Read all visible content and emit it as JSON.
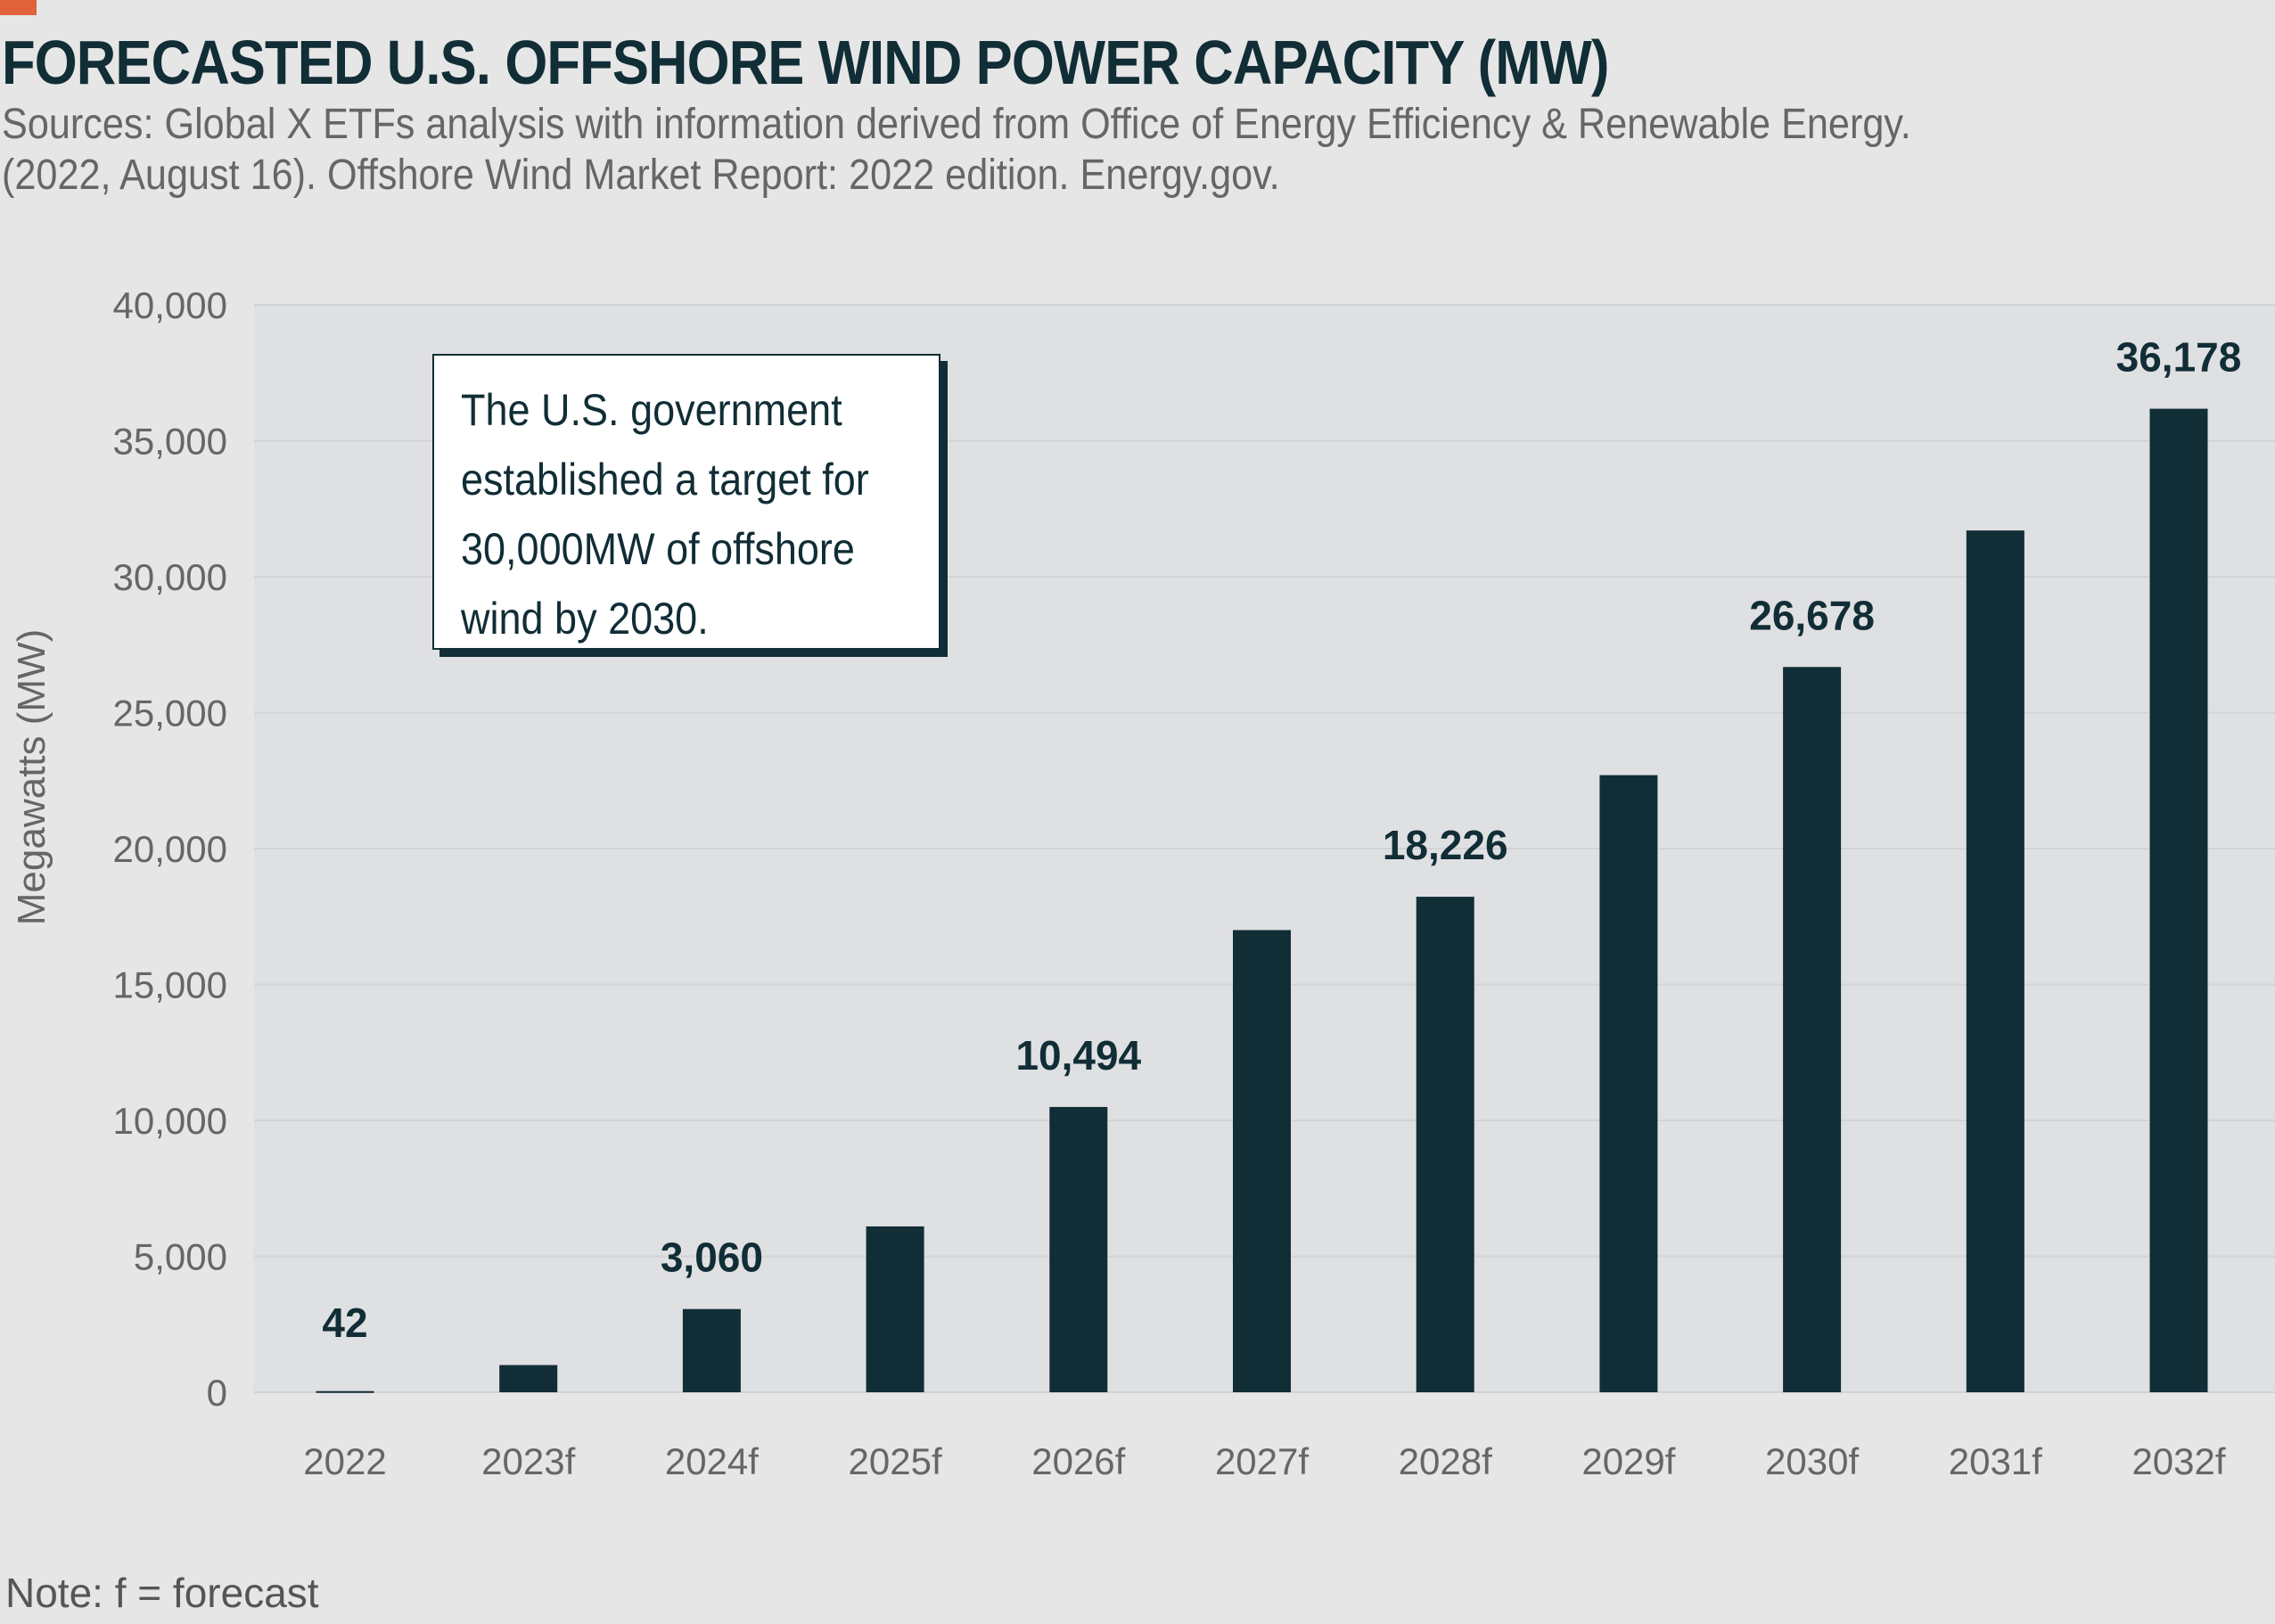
{
  "header": {
    "title": "FORECASTED U.S. OFFSHORE WIND POWER CAPACITY (MW)",
    "subtitle_lines": [
      "Sources: Global X ETFs analysis with information derived from Office of Energy Efficiency & Renewable Energy.",
      "(2022, August 16). Offshore Wind Market Report: 2022 edition. Energy.gov."
    ]
  },
  "annotation": {
    "lines": [
      "The U.S. government",
      "established a target for",
      "30,000MW of offshore",
      "wind by 2030."
    ]
  },
  "note": "Note: f = forecast",
  "colors": {
    "bar": "#112d36",
    "accent": "#e0623a",
    "plot_bg": "#dfe0e2",
    "page_bg": "#e6e6e6"
  },
  "chart_data": {
    "type": "bar",
    "title": "FORECASTED U.S. OFFSHORE WIND POWER CAPACITY (MW)",
    "xlabel": "",
    "ylabel": "Megawatts (MW)",
    "categories": [
      "2022",
      "2023f",
      "2024f",
      "2025f",
      "2026f",
      "2027f",
      "2028f",
      "2029f",
      "2030f",
      "2031f",
      "2032f"
    ],
    "values": [
      42,
      1000,
      3060,
      6100,
      10494,
      17000,
      18226,
      22700,
      26678,
      31700,
      36178
    ],
    "data_labels": [
      "42",
      "",
      "3,060",
      "",
      "10,494",
      "",
      "18,226",
      "",
      "26,678",
      "",
      "36,178"
    ],
    "ylim": [
      0,
      40000
    ],
    "yticks": [
      0,
      5000,
      10000,
      15000,
      20000,
      25000,
      30000,
      35000,
      40000
    ],
    "ytick_labels": [
      "0",
      "5,000",
      "10,000",
      "15,000",
      "20,000",
      "25,000",
      "30,000",
      "35,000",
      "40,000"
    ],
    "grid": true,
    "legend": "none"
  }
}
